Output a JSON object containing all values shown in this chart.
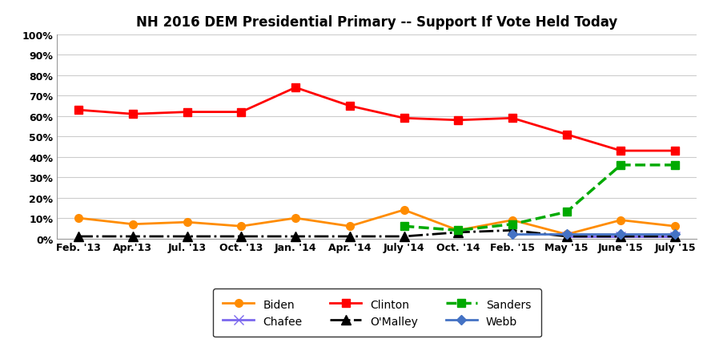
{
  "title": "NH 2016 DEM Presidential Primary -- Support If Vote Held Today",
  "x_labels": [
    "Feb. '13",
    "Apr.'13",
    "Jul. '13",
    "Oct. '13",
    "Jan. '14",
    "Apr. '14",
    "July '14",
    "Oct. '14",
    "Feb. '15",
    "May '15",
    "June '15",
    "July '15"
  ],
  "series": {
    "Biden": {
      "values": [
        10,
        7,
        8,
        6,
        10,
        6,
        14,
        4,
        9,
        2,
        9,
        6
      ],
      "color": "#FF8C00",
      "marker": "o",
      "linestyle": "-",
      "linewidth": 2.0,
      "markersize": 7
    },
    "Chafee": {
      "values": [
        null,
        null,
        null,
        null,
        null,
        null,
        null,
        null,
        null,
        1,
        1,
        1
      ],
      "color": "#7B68EE",
      "marker": "x",
      "linestyle": "-",
      "linewidth": 2.0,
      "markersize": 8
    },
    "Clinton": {
      "values": [
        63,
        61,
        62,
        62,
        74,
        65,
        59,
        58,
        59,
        51,
        43,
        43
      ],
      "color": "#FF0000",
      "marker": "s",
      "linestyle": "-",
      "linewidth": 2.0,
      "markersize": 7
    },
    "O'Malley": {
      "values": [
        1,
        1,
        1,
        1,
        1,
        1,
        1,
        3,
        4,
        1,
        1,
        1
      ],
      "color": "#000000",
      "marker": "^",
      "linestyle": "-.",
      "linewidth": 2.0,
      "markersize": 8
    },
    "Sanders": {
      "values": [
        null,
        null,
        null,
        null,
        null,
        null,
        6,
        4,
        7,
        13,
        36,
        36
      ],
      "color": "#00AA00",
      "marker": "s",
      "linestyle": "--",
      "linewidth": 2.5,
      "markersize": 7
    },
    "Webb": {
      "values": [
        null,
        null,
        null,
        null,
        null,
        null,
        null,
        null,
        2,
        2,
        2,
        2
      ],
      "color": "#4472C4",
      "marker": "D",
      "linestyle": "-",
      "linewidth": 2.0,
      "markersize": 6
    }
  },
  "ylim": [
    0,
    100
  ],
  "yticks": [
    0,
    10,
    20,
    30,
    40,
    50,
    60,
    70,
    80,
    90,
    100
  ],
  "ytick_labels": [
    "0%",
    "10%",
    "20%",
    "30%",
    "40%",
    "50%",
    "60%",
    "70%",
    "80%",
    "90%",
    "100%"
  ],
  "background_color": "#FFFFFF",
  "grid_color": "#CCCCCC",
  "title_fontsize": 12,
  "legend_order": [
    "Biden",
    "Chafee",
    "Clinton",
    "O'Malley",
    "Sanders",
    "Webb"
  ]
}
